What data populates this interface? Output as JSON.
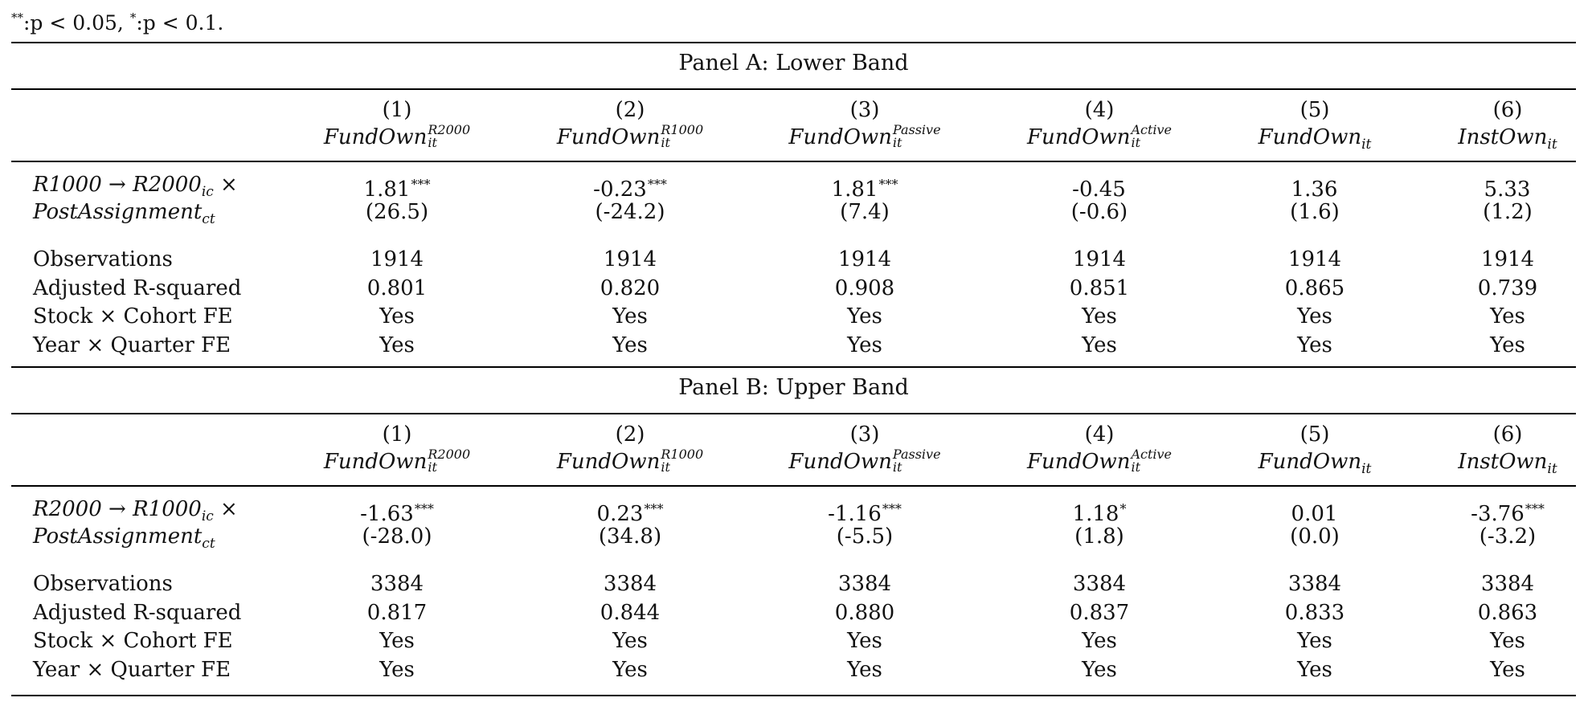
{
  "note": {
    "p05_label": ":p < 0.05, ",
    "p10_label": ":p < 0.1."
  },
  "columns": [
    {
      "num": "(1)",
      "base": "FundOwn",
      "sup": "R2000",
      "sub": "it"
    },
    {
      "num": "(2)",
      "base": "FundOwn",
      "sup": "R1000",
      "sub": "it"
    },
    {
      "num": "(3)",
      "base": "FundOwn",
      "sup": "Passive",
      "sub": "it"
    },
    {
      "num": "(4)",
      "base": "FundOwn",
      "sup": "Active",
      "sub": "it"
    },
    {
      "num": "(5)",
      "base": "FundOwn",
      "sup": "",
      "sub": "it"
    },
    {
      "num": "(6)",
      "base": "InstOwn",
      "sup": "",
      "sub": "it"
    }
  ],
  "panels": [
    {
      "title": "Panel A: Lower Band",
      "treat_from": "R1000",
      "treat_to": "R2000",
      "treat_sub": "ic",
      "post_label": "PostAssignment",
      "post_sub": "ct",
      "coef": [
        {
          "v": "1.81",
          "s": "***"
        },
        {
          "v": "-0.23",
          "s": "***"
        },
        {
          "v": "1.81",
          "s": "***"
        },
        {
          "v": "-0.45",
          "s": ""
        },
        {
          "v": "1.36",
          "s": ""
        },
        {
          "v": "5.33",
          "s": ""
        }
      ],
      "tstat": [
        "(26.5)",
        "(-24.2)",
        "(7.4)",
        "(-0.6)",
        "(1.6)",
        "(1.2)"
      ],
      "stats": [
        {
          "label": "Observations",
          "values": [
            "1914",
            "1914",
            "1914",
            "1914",
            "1914",
            "1914"
          ]
        },
        {
          "label": "Adjusted R-squared",
          "values": [
            "0.801",
            "0.820",
            "0.908",
            "0.851",
            "0.865",
            "0.739"
          ]
        },
        {
          "label": "Stock × Cohort FE",
          "values": [
            "Yes",
            "Yes",
            "Yes",
            "Yes",
            "Yes",
            "Yes"
          ]
        },
        {
          "label": "Year × Quarter FE",
          "values": [
            "Yes",
            "Yes",
            "Yes",
            "Yes",
            "Yes",
            "Yes"
          ]
        }
      ]
    },
    {
      "title": "Panel B: Upper Band",
      "treat_from": "R2000",
      "treat_to": "R1000",
      "treat_sub": "ic",
      "post_label": "PostAssignment",
      "post_sub": "ct",
      "coef": [
        {
          "v": "-1.63",
          "s": "***"
        },
        {
          "v": "0.23",
          "s": "***"
        },
        {
          "v": "-1.16",
          "s": "***"
        },
        {
          "v": "1.18",
          "s": "*"
        },
        {
          "v": "0.01",
          "s": ""
        },
        {
          "v": "-3.76",
          "s": "***"
        }
      ],
      "tstat": [
        "(-28.0)",
        "(34.8)",
        "(-5.5)",
        "(1.8)",
        "(0.0)",
        "(-3.2)"
      ],
      "stats": [
        {
          "label": "Observations",
          "values": [
            "3384",
            "3384",
            "3384",
            "3384",
            "3384",
            "3384"
          ]
        },
        {
          "label": "Adjusted R-squared",
          "values": [
            "0.817",
            "0.844",
            "0.880",
            "0.837",
            "0.833",
            "0.863"
          ]
        },
        {
          "label": "Stock × Cohort FE",
          "values": [
            "Yes",
            "Yes",
            "Yes",
            "Yes",
            "Yes",
            "Yes"
          ]
        },
        {
          "label": "Year × Quarter FE",
          "values": [
            "Yes",
            "Yes",
            "Yes",
            "Yes",
            "Yes",
            "Yes"
          ]
        }
      ]
    }
  ]
}
